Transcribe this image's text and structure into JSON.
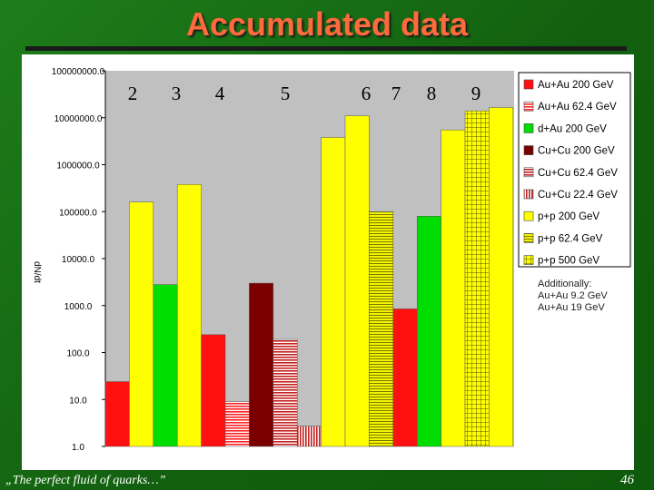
{
  "slide": {
    "title": "Accumulated data",
    "footer": "„The perfect fluid of quarks…”",
    "page_number": "46"
  },
  "chart_data": {
    "type": "bar",
    "scale": "log",
    "ylim": [
      1,
      100000000
    ],
    "ytick_labels": [
      "100000000.0",
      "10000000.0",
      "1000000.0",
      "100000.0",
      "10000.0",
      "1000.0",
      "100.0",
      "10.0",
      "1.0"
    ],
    "ylabel": "dN/dt",
    "group_labels": [
      "2",
      "3",
      "4",
      "5",
      "6",
      "7",
      "8",
      "9"
    ],
    "legend": [
      {
        "label": "Au+Au 200 GeV",
        "color": "#ff1010",
        "pattern": "solid"
      },
      {
        "label": "Au+Au 62.4 GeV",
        "color": "#ff2020",
        "pattern": "hstripe"
      },
      {
        "label": "d+Au 200 GeV",
        "color": "#00dd00",
        "pattern": "solid"
      },
      {
        "label": "Cu+Cu 200 GeV",
        "color": "#7a0000",
        "pattern": "solid"
      },
      {
        "label": "Cu+Cu 62.4 GeV",
        "color": "#c42020",
        "pattern": "hstripe"
      },
      {
        "label": "Cu+Cu 22.4 GeV",
        "color": "#c42020",
        "pattern": "vstripe"
      },
      {
        "label": "p+p 200 GeV",
        "color": "#ffff00",
        "pattern": "solid"
      },
      {
        "label": "p+p 62.4 GeV",
        "color": "#f4f400",
        "pattern": "hstripe"
      },
      {
        "label": "p+p 500 GeV",
        "color": "#ffff00",
        "pattern": "grid"
      }
    ],
    "legend_note": [
      "Additionally:",
      "Au+Au 9.2 GeV",
      "Au+Au 19 GeV"
    ],
    "bars": [
      {
        "series": "Au+Au 200 GeV",
        "value": 24
      },
      {
        "series": "p+p 200 GeV",
        "value": 160000
      },
      {
        "series": "d+Au 200 GeV",
        "value": 2800
      },
      {
        "series": "p+p 200 GeV",
        "value": 380000
      },
      {
        "series": "Au+Au 200 GeV",
        "value": 240
      },
      {
        "series": "Au+Au 62.4 GeV",
        "value": 9
      },
      {
        "series": "Cu+Cu 200 GeV",
        "value": 3000
      },
      {
        "series": "Cu+Cu 62.4 GeV",
        "value": 190
      },
      {
        "series": "Cu+Cu 22.4 GeV",
        "value": 2.7
      },
      {
        "series": "p+p 200 GeV",
        "value": 3800000
      },
      {
        "series": "p+p 200 GeV",
        "value": 11000000
      },
      {
        "series": "p+p 62.4 GeV",
        "value": 100000
      },
      {
        "series": "Au+Au 200 GeV",
        "value": 850
      },
      {
        "series": "d+Au 200 GeV",
        "value": 80000
      },
      {
        "series": "p+p 200 GeV",
        "value": 5500000
      },
      {
        "series": "p+p 500 GeV",
        "value": 14000000
      },
      {
        "series": "p+p 200 GeV",
        "value": 16500000
      }
    ],
    "grid": false,
    "legend_position": "right"
  }
}
